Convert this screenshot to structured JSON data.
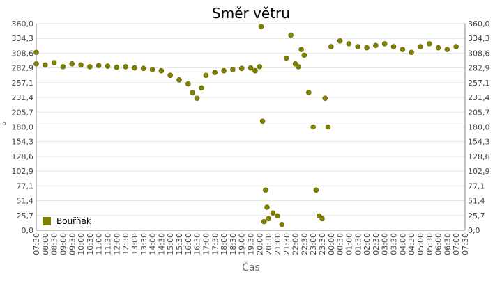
{
  "chart_data": {
    "type": "scatter",
    "title": "Směr větru",
    "xlabel": "Čas",
    "ylabel": "°",
    "ylim": [
      0,
      360
    ],
    "y_ticks": [
      "0,0",
      "25,7",
      "51,4",
      "77,1",
      "102,9",
      "128,6",
      "154,3",
      "180,0",
      "205,7",
      "231,4",
      "257,1",
      "282,9",
      "308,6",
      "334,3",
      "360,0"
    ],
    "x_ticks": [
      "07:30",
      "08:00",
      "08:30",
      "09:00",
      "09:30",
      "10:00",
      "10:30",
      "11:00",
      "11:30",
      "12:00",
      "12:30",
      "13:00",
      "13:30",
      "14:00",
      "14:30",
      "15:00",
      "15:30",
      "16:00",
      "16:30",
      "17:00",
      "17:30",
      "18:00",
      "18:30",
      "19:00",
      "19:30",
      "20:00",
      "20:30",
      "21:00",
      "21:30",
      "22:00",
      "22:30",
      "23:00",
      "23:30",
      "00:00",
      "00:30",
      "01:00",
      "01:30",
      "02:00",
      "02:30",
      "03:00",
      "03:30",
      "04:00",
      "04:30",
      "05:00",
      "05:30",
      "06:00",
      "06:30",
      "07:00",
      "07:30"
    ],
    "legend": "bottom-left",
    "grid": true,
    "colors": {
      "series": "#808000",
      "grid": "#e3e3e3",
      "axis": "#888888"
    },
    "series": [
      {
        "name": "Bouřňák",
        "x": [
          "07:30",
          "08:00",
          "08:30",
          "09:00",
          "09:30",
          "10:00",
          "10:30",
          "11:00",
          "11:30",
          "12:00",
          "12:30",
          "13:00",
          "13:30",
          "14:00",
          "14:30",
          "15:00",
          "15:30",
          "16:00",
          "16:15",
          "16:30",
          "16:45",
          "17:00",
          "17:30",
          "18:00",
          "18:30",
          "19:00",
          "19:30",
          "19:45",
          "20:00",
          "20:05",
          "20:10",
          "20:15",
          "20:20",
          "20:25",
          "20:30",
          "20:45",
          "21:00",
          "21:15",
          "21:30",
          "21:45",
          "22:00",
          "22:10",
          "22:20",
          "22:30",
          "22:45",
          "23:00",
          "23:10",
          "23:20",
          "23:30",
          "23:40",
          "23:50",
          "00:00",
          "00:30",
          "01:00",
          "01:30",
          "02:00",
          "02:30",
          "03:00",
          "03:30",
          "04:00",
          "04:30",
          "05:00",
          "05:30",
          "06:00",
          "06:30",
          "07:00",
          "07:30"
        ],
        "y": [
          290,
          288,
          292,
          285,
          290,
          288,
          285,
          287,
          286,
          284,
          285,
          283,
          282,
          280,
          278,
          270,
          262,
          255,
          240,
          230,
          248,
          270,
          275,
          278,
          280,
          282,
          283,
          278,
          285,
          355,
          190,
          15,
          70,
          40,
          20,
          30,
          25,
          10,
          300,
          340,
          290,
          285,
          315,
          305,
          240,
          180,
          70,
          25,
          20,
          230,
          180,
          320,
          330,
          325,
          320,
          318,
          322,
          325,
          320,
          315,
          310,
          320,
          325,
          318,
          315,
          320,
          310
        ]
      }
    ]
  }
}
